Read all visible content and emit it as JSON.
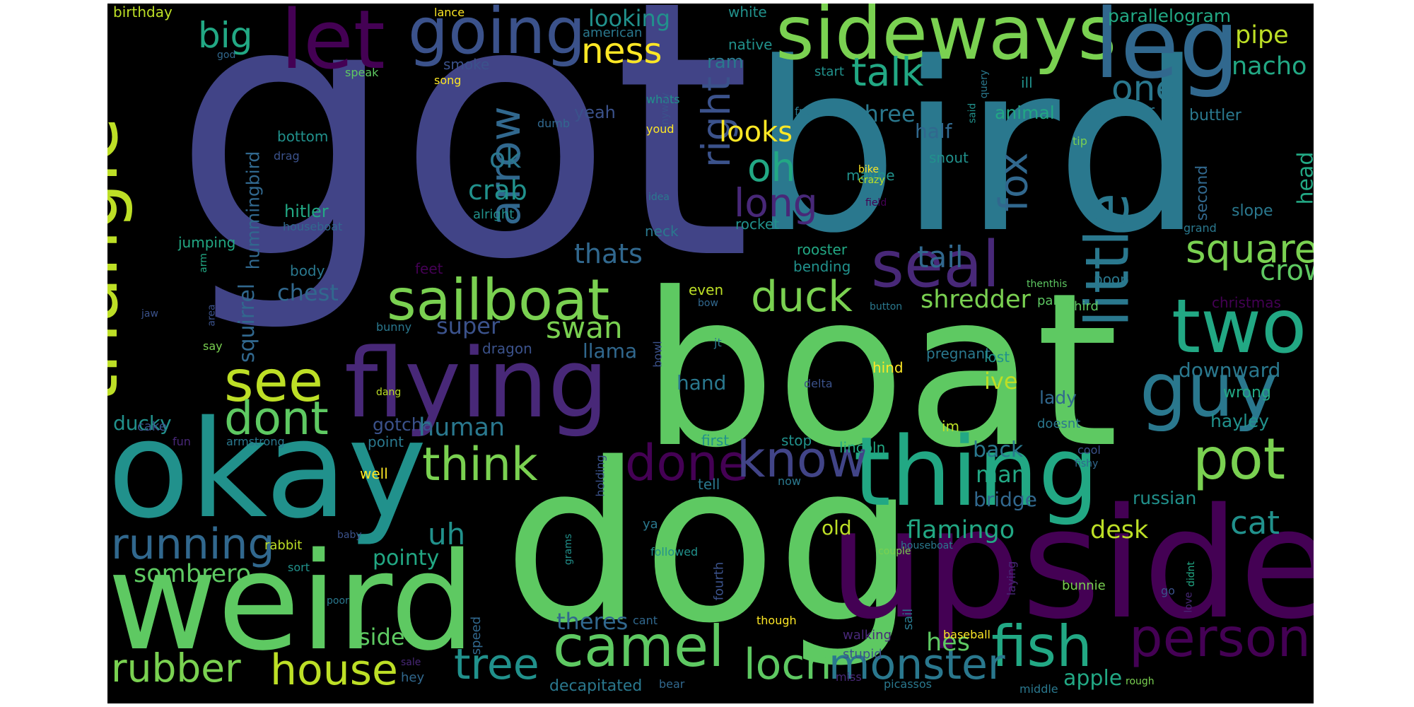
{
  "word_cloud": {
    "words": [
      {
        "text": "got",
        "color": "#414487"
      },
      {
        "text": "bird",
        "color": "#2a788e"
      },
      {
        "text": "boat",
        "color": "#5ec962"
      },
      {
        "text": "dog",
        "color": "#5ec962"
      },
      {
        "text": "upside",
        "color": "#440154"
      },
      {
        "text": "okay",
        "color": "#21918c"
      },
      {
        "text": "weird",
        "color": "#5ec962"
      },
      {
        "text": "thing",
        "color": "#22a884"
      },
      {
        "text": "sideways",
        "color": "#7ad151"
      },
      {
        "text": "going",
        "color": "#3b528b"
      },
      {
        "text": "leg",
        "color": "#31688e"
      },
      {
        "text": "let",
        "color": "#440154"
      },
      {
        "text": "triangle",
        "color": "#bddf26"
      },
      {
        "text": "flying",
        "color": "#482878"
      },
      {
        "text": "guy",
        "color": "#2a788e"
      },
      {
        "text": "two",
        "color": "#22a884"
      },
      {
        "text": "little",
        "color": "#2a788e"
      },
      {
        "text": "seal",
        "color": "#482878"
      },
      {
        "text": "sailboat",
        "color": "#7ad151"
      },
      {
        "text": "see",
        "color": "#bddf26"
      },
      {
        "text": "pot",
        "color": "#7ad151"
      },
      {
        "text": "fish",
        "color": "#22a884"
      },
      {
        "text": "person",
        "color": "#440154"
      },
      {
        "text": "camel",
        "color": "#5ec962"
      },
      {
        "text": "monster",
        "color": "#2a788e"
      },
      {
        "text": "house",
        "color": "#bddf26"
      },
      {
        "text": "rubber",
        "color": "#7ad151"
      },
      {
        "text": "running",
        "color": "#31688e"
      },
      {
        "text": "tree",
        "color": "#21918c"
      },
      {
        "text": "loch",
        "color": "#5ec962"
      },
      {
        "text": "done",
        "color": "#440154"
      },
      {
        "text": "know",
        "color": "#414487"
      },
      {
        "text": "think",
        "color": "#7ad151"
      },
      {
        "text": "dont",
        "color": "#5ec962"
      },
      {
        "text": "duck",
        "color": "#7ad151"
      },
      {
        "text": "square",
        "color": "#7ad151"
      },
      {
        "text": "arrow",
        "color": "#31688e"
      },
      {
        "text": "right",
        "color": "#3b528b"
      },
      {
        "text": "long",
        "color": "#482878"
      },
      {
        "text": "oh",
        "color": "#22a884"
      },
      {
        "text": "fox",
        "color": "#31688e"
      },
      {
        "text": "talk",
        "color": "#22a884"
      },
      {
        "text": "one",
        "color": "#2a788e"
      },
      {
        "text": "big",
        "color": "#22a884"
      },
      {
        "text": "ness",
        "color": "#fde725"
      },
      {
        "text": "looking",
        "color": "#21918c"
      },
      {
        "text": "pipe",
        "color": "#bddf26"
      },
      {
        "text": "nacho",
        "color": "#22a884"
      },
      {
        "text": "parallelogram",
        "color": "#22a884"
      },
      {
        "text": "crab",
        "color": "#21918c"
      },
      {
        "text": "ok",
        "color": "#2a788e"
      },
      {
        "text": "tail",
        "color": "#31688e"
      },
      {
        "text": "crow",
        "color": "#5ec962"
      },
      {
        "text": "swan",
        "color": "#7ad151"
      },
      {
        "text": "chest",
        "color": "#31688e"
      },
      {
        "text": "shredder",
        "color": "#7ad151"
      },
      {
        "text": "squirrel",
        "color": "#31688e"
      },
      {
        "text": "thats",
        "color": "#31688e"
      },
      {
        "text": "hummingbird",
        "color": "#31688e"
      },
      {
        "text": "looks",
        "color": "#fde725"
      },
      {
        "text": "three",
        "color": "#2a788e"
      },
      {
        "text": "half",
        "color": "#31688e"
      },
      {
        "text": "animal",
        "color": "#22a884"
      },
      {
        "text": "another",
        "color": "#2a788e"
      },
      {
        "text": "buttler",
        "color": "#2a788e"
      },
      {
        "text": "head",
        "color": "#22a884"
      },
      {
        "text": "second",
        "color": "#31688e"
      },
      {
        "text": "slope",
        "color": "#2a788e"
      },
      {
        "text": "super",
        "color": "#3b528b"
      },
      {
        "text": "llama",
        "color": "#31688e"
      },
      {
        "text": "human",
        "color": "#2a788e"
      },
      {
        "text": "gotcha",
        "color": "#3b528b"
      },
      {
        "text": "ducky",
        "color": "#21918c"
      },
      {
        "text": "hand",
        "color": "#2a788e"
      },
      {
        "text": "ive",
        "color": "#bddf26"
      },
      {
        "text": "downward",
        "color": "#2a788e"
      },
      {
        "text": "lady",
        "color": "#31688e"
      },
      {
        "text": "wrong",
        "color": "#22a884"
      },
      {
        "text": "hayley",
        "color": "#21918c"
      },
      {
        "text": "back",
        "color": "#2a788e"
      },
      {
        "text": "man",
        "color": "#22a884"
      },
      {
        "text": "bridge",
        "color": "#31688e"
      },
      {
        "text": "russian",
        "color": "#21918c"
      },
      {
        "text": "cat",
        "color": "#21918c"
      },
      {
        "text": "desk",
        "color": "#bddf26"
      },
      {
        "text": "flamingo",
        "color": "#22a884"
      },
      {
        "text": "old",
        "color": "#bddf26"
      },
      {
        "text": "uh",
        "color": "#21918c"
      },
      {
        "text": "pointy",
        "color": "#22a884"
      },
      {
        "text": "sombrero",
        "color": "#5ec962"
      },
      {
        "text": "side",
        "color": "#5ec962"
      },
      {
        "text": "theres",
        "color": "#31688e"
      },
      {
        "text": "hes",
        "color": "#5ec962"
      },
      {
        "text": "apple",
        "color": "#22a884"
      },
      {
        "text": "decapitated",
        "color": "#2a788e"
      },
      {
        "text": "birthday",
        "color": "#bddf26"
      },
      {
        "text": "lance",
        "color": "#fde725"
      },
      {
        "text": "white",
        "color": "#21918c"
      },
      {
        "text": "american",
        "color": "#2a788e"
      },
      {
        "text": "native",
        "color": "#21918c"
      },
      {
        "text": "start",
        "color": "#21918c"
      },
      {
        "text": "ram",
        "color": "#2a788e"
      },
      {
        "text": "yeah",
        "color": "#3b528b"
      },
      {
        "text": "smoke",
        "color": "#3b528b"
      },
      {
        "text": "song",
        "color": "#fde725"
      },
      {
        "text": "speak",
        "color": "#5ec962"
      },
      {
        "text": "god",
        "color": "#31688e"
      },
      {
        "text": "query",
        "color": "#2a788e"
      },
      {
        "text": "ill",
        "color": "#21918c"
      },
      {
        "text": "said",
        "color": "#21918c"
      },
      {
        "text": "tip",
        "color": "#7ad151"
      },
      {
        "text": "front",
        "color": "#2a788e"
      },
      {
        "text": "whats",
        "color": "#21918c"
      },
      {
        "text": "anyway",
        "color": "#3b528b"
      },
      {
        "text": "dumb",
        "color": "#31688e"
      },
      {
        "text": "youd",
        "color": "#fde725"
      },
      {
        "text": "bottom",
        "color": "#21918c"
      },
      {
        "text": "drag",
        "color": "#3b528b"
      },
      {
        "text": "maybe",
        "color": "#21918c"
      },
      {
        "text": "snout",
        "color": "#21918c"
      },
      {
        "text": "bike",
        "color": "#fde725"
      },
      {
        "text": "crazy",
        "color": "#bddf26"
      },
      {
        "text": "field",
        "color": "#440154"
      },
      {
        "text": "idea",
        "color": "#2a788e"
      },
      {
        "text": "alright",
        "color": "#21918c"
      },
      {
        "text": "hitler",
        "color": "#22a884"
      },
      {
        "text": "houseboat",
        "color": "#31688e"
      },
      {
        "text": "neck",
        "color": "#2a788e"
      },
      {
        "text": "rocket",
        "color": "#21918c"
      },
      {
        "text": "grand",
        "color": "#2a788e"
      },
      {
        "text": "jumping",
        "color": "#22a884"
      },
      {
        "text": "arm",
        "color": "#22a884"
      },
      {
        "text": "body",
        "color": "#2a788e"
      },
      {
        "text": "feet",
        "color": "#440154"
      },
      {
        "text": "rooster",
        "color": "#22a884"
      },
      {
        "text": "bending",
        "color": "#21918c"
      },
      {
        "text": "poop",
        "color": "#2a788e"
      },
      {
        "text": "thenthis",
        "color": "#5ec962"
      },
      {
        "text": "christmas",
        "color": "#440154"
      },
      {
        "text": "even",
        "color": "#bddf26"
      },
      {
        "text": "bow",
        "color": "#31688e"
      },
      {
        "text": "palm",
        "color": "#5ec962"
      },
      {
        "text": "button",
        "color": "#2a788e"
      },
      {
        "text": "third",
        "color": "#5ec962"
      },
      {
        "text": "area",
        "color": "#3b528b"
      },
      {
        "text": "jaw",
        "color": "#3b528b"
      },
      {
        "text": "say",
        "color": "#7ad151"
      },
      {
        "text": "bunny",
        "color": "#2a788e"
      },
      {
        "text": "jt",
        "color": "#2a788e"
      },
      {
        "text": "dragon",
        "color": "#3b528b"
      },
      {
        "text": "bowl",
        "color": "#3b528b"
      },
      {
        "text": "pregnant",
        "color": "#2a788e"
      },
      {
        "text": "lost",
        "color": "#21918c"
      },
      {
        "text": "hind",
        "color": "#fde725"
      },
      {
        "text": "delta",
        "color": "#3b528b"
      },
      {
        "text": "dang",
        "color": "#bddf26"
      },
      {
        "text": "cake",
        "color": "#3b528b"
      },
      {
        "text": "fun",
        "color": "#482878"
      },
      {
        "text": "armstrong",
        "color": "#2a788e"
      },
      {
        "text": "point",
        "color": "#2a788e"
      },
      {
        "text": "first",
        "color": "#21918c"
      },
      {
        "text": "stop",
        "color": "#21918c"
      },
      {
        "text": "lincoln",
        "color": "#22a884"
      },
      {
        "text": "im",
        "color": "#bddf26"
      },
      {
        "text": "doesnt",
        "color": "#2a788e"
      },
      {
        "text": "cool",
        "color": "#3b528b"
      },
      {
        "text": "fishy",
        "color": "#31688e"
      },
      {
        "text": "now",
        "color": "#2a788e"
      },
      {
        "text": "holding",
        "color": "#3b528b"
      },
      {
        "text": "well",
        "color": "#fde725"
      },
      {
        "text": "tell",
        "color": "#2a788e"
      },
      {
        "text": "ya",
        "color": "#2a788e"
      },
      {
        "text": "houseboat",
        "color": "#2a788e"
      },
      {
        "text": "baby",
        "color": "#3b528b"
      },
      {
        "text": "grams",
        "color": "#21918c"
      },
      {
        "text": "rabbit",
        "color": "#bddf26"
      },
      {
        "text": "followed",
        "color": "#21918c"
      },
      {
        "text": "couple",
        "color": "#7ad151"
      },
      {
        "text": "sort",
        "color": "#21918c"
      },
      {
        "text": "poor",
        "color": "#2a788e"
      },
      {
        "text": "fourth",
        "color": "#3b528b"
      },
      {
        "text": "cant",
        "color": "#31688e"
      },
      {
        "text": "though",
        "color": "#fde725"
      },
      {
        "text": "speed",
        "color": "#31688e"
      },
      {
        "text": "sail",
        "color": "#2a788e"
      },
      {
        "text": "walking",
        "color": "#482878"
      },
      {
        "text": "stupid",
        "color": "#3b528b"
      },
      {
        "text": "baseball",
        "color": "#fde725"
      },
      {
        "text": "bunnie",
        "color": "#7ad151"
      },
      {
        "text": "didnt",
        "color": "#22a884"
      },
      {
        "text": "love",
        "color": "#482878"
      },
      {
        "text": "go",
        "color": "#3b528b"
      },
      {
        "text": "laying",
        "color": "#482878"
      },
      {
        "text": "hey",
        "color": "#31688e"
      },
      {
        "text": "sale",
        "color": "#482878"
      },
      {
        "text": "bear",
        "color": "#31688e"
      },
      {
        "text": "miss",
        "color": "#482878"
      },
      {
        "text": "picassos",
        "color": "#2a788e"
      },
      {
        "text": "middle",
        "color": "#2a788e"
      },
      {
        "text": "rough",
        "color": "#7ad151"
      }
    ]
  }
}
